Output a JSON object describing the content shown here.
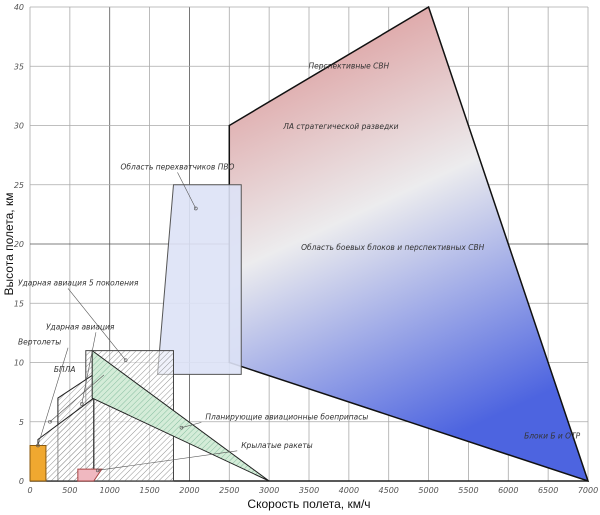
{
  "chart_data": {
    "type": "area",
    "title": "",
    "xlabel": "Скорость полета, км/ч",
    "ylabel": "Высота полета, км",
    "xlim": [
      0,
      7000
    ],
    "ylim": [
      0,
      40
    ],
    "grid": true,
    "xticks": [
      "0",
      "500",
      "1000",
      "1500",
      "2000",
      "2500",
      "3000",
      "3500",
      "4000",
      "4500",
      "5000",
      "5500",
      "6000",
      "6500",
      "7000"
    ],
    "yticks": [
      "0",
      "5",
      "10",
      "15",
      "20",
      "25",
      "30",
      "35",
      "40"
    ],
    "regions": [
      {
        "id": "strategic",
        "vertices": [
          [
            2500,
            10
          ],
          [
            2500,
            30
          ],
          [
            5000,
            40
          ],
          [
            7000,
            0
          ]
        ],
        "fill": "gradient red-gray-blue",
        "labels": [
          "Перспективные СВН",
          "ЛА стратегической разведки",
          "Область боевых блоков и перспективных СВН",
          "Блоки Б и ОТР"
        ]
      },
      {
        "id": "pvo",
        "label": "Область перехватчиков ПВО",
        "vertices": [
          [
            1600,
            9
          ],
          [
            1800,
            25
          ],
          [
            2650,
            25
          ],
          [
            2650,
            9
          ]
        ],
        "fill": "#dde2f6"
      },
      {
        "id": "strike5",
        "label": "Ударная авиация 5 поколения",
        "vertices": [
          [
            700,
            0
          ],
          [
            700,
            11
          ],
          [
            1800,
            11
          ],
          [
            1800,
            0
          ]
        ],
        "fill": "hatched"
      },
      {
        "id": "strike",
        "label": "Ударная авиация",
        "vertices": [
          [
            350,
            0
          ],
          [
            350,
            7
          ],
          [
            800,
            9
          ],
          [
            800,
            0
          ]
        ],
        "fill": "hatched"
      },
      {
        "id": "uav",
        "label": "БПЛА",
        "vertices": [
          [
            100,
            0
          ],
          [
            100,
            3.5
          ],
          [
            800,
            7
          ],
          [
            800,
            0
          ]
        ],
        "fill": "hatched"
      },
      {
        "id": "helicopters",
        "label": "Вертолеты",
        "vertices": [
          [
            0,
            0
          ],
          [
            0,
            3
          ],
          [
            200,
            3
          ],
          [
            200,
            0
          ]
        ],
        "fill": "#f0a830"
      },
      {
        "id": "glide",
        "label": "Планирующие авиационные боеприпасы",
        "vertices": [
          [
            780,
            11
          ],
          [
            3000,
            0
          ],
          [
            780,
            7
          ]
        ],
        "fill": "#d4ecd8"
      },
      {
        "id": "cruise",
        "label": "Крылатые ракеты",
        "vertices": [
          [
            600,
            0
          ],
          [
            600,
            1
          ],
          [
            900,
            1
          ],
          [
            800,
            0
          ]
        ],
        "fill": "#f0b8c0"
      }
    ]
  }
}
